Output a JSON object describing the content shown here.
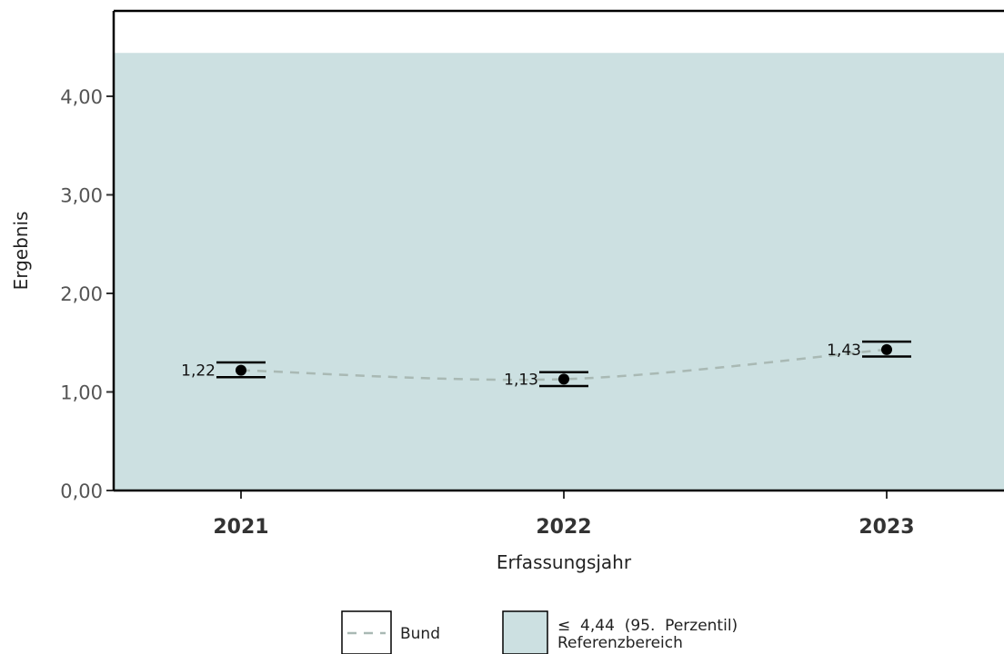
{
  "chart_data": {
    "type": "line",
    "xlabel": "Erfassungsjahr",
    "ylabel": "Ergebnis",
    "categories": [
      "2021",
      "2022",
      "2023"
    ],
    "ylim": [
      0,
      4.9
    ],
    "yticks": [
      "0,00",
      "1,00",
      "2,00",
      "3,00",
      "4,00"
    ],
    "series": [
      {
        "name": "Bund",
        "values": [
          1.22,
          1.13,
          1.43
        ],
        "labels": [
          "1,22",
          "1,13",
          "1,43"
        ],
        "ci_low": [
          1.15,
          1.06,
          1.36
        ],
        "ci_high": [
          1.3,
          1.2,
          1.51
        ]
      }
    ],
    "reference": {
      "upper": 4.44,
      "label_line1": "≤  4,44  (95.  Perzentil)",
      "label_line2": "Referenzbereich",
      "color": "#cce0e1"
    },
    "trend_color": "#a9b9b4",
    "legend": {
      "position": "bottom",
      "bund_label": "Bund"
    }
  }
}
